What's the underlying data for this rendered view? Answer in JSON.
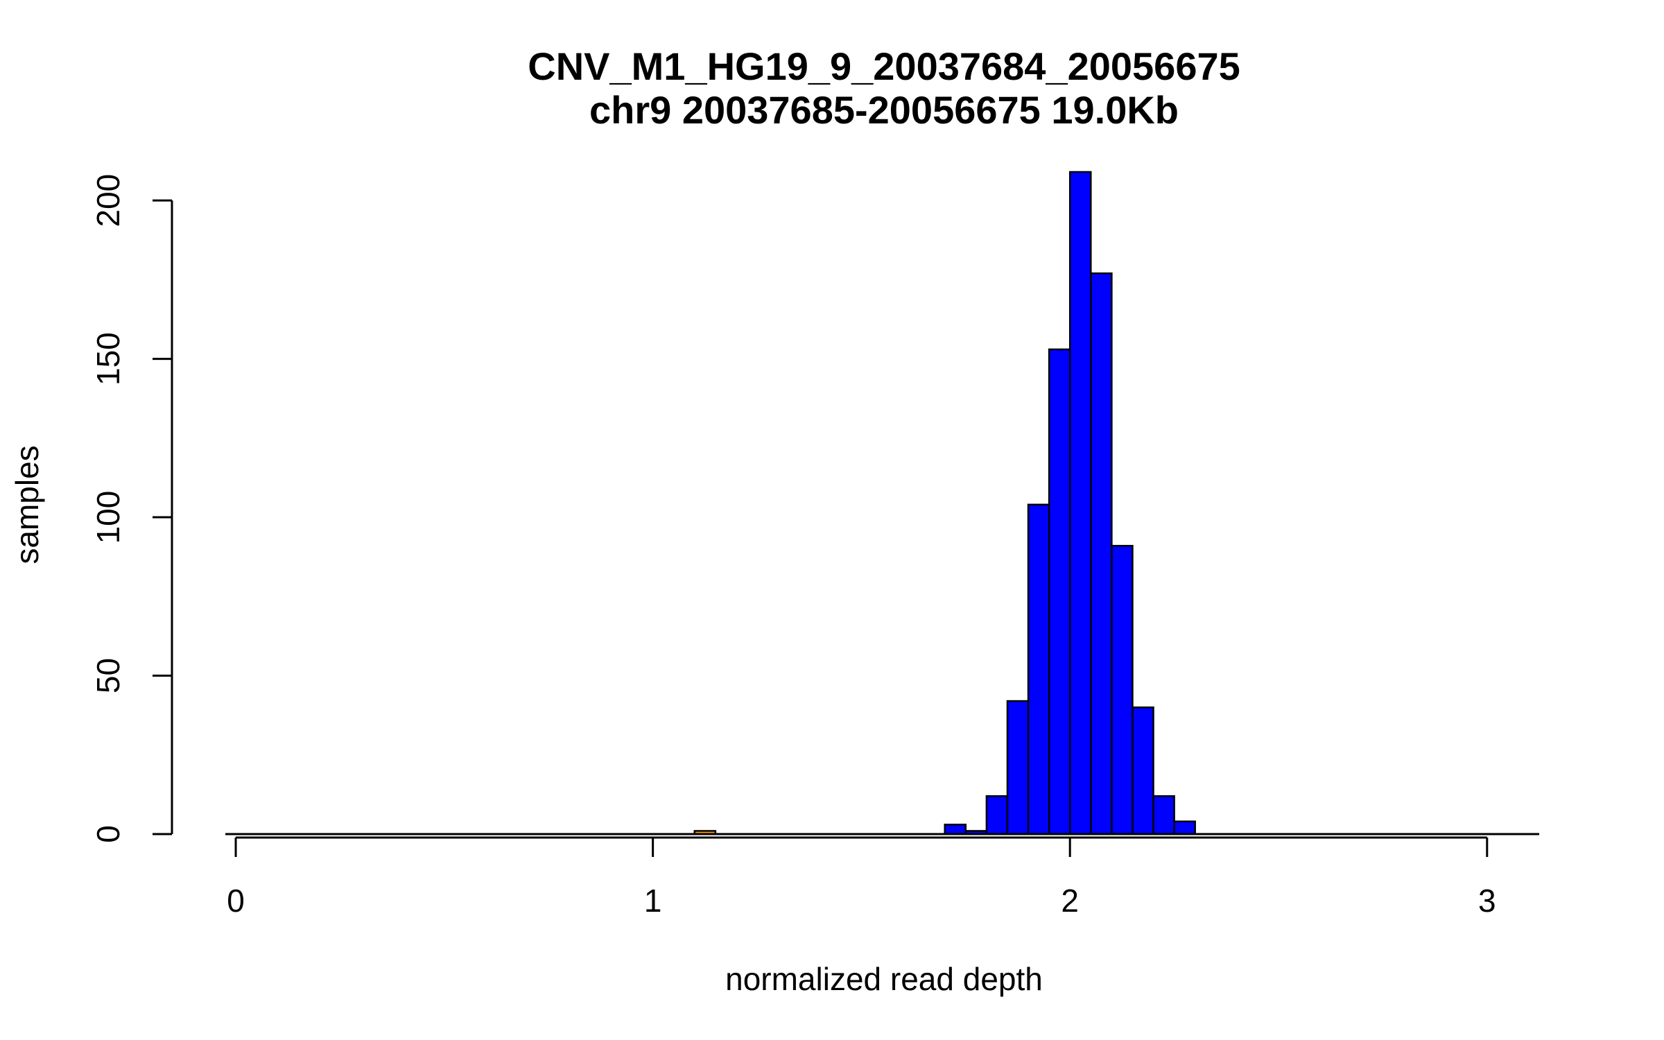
{
  "chart_data": {
    "type": "bar",
    "title": "CNV_M1_HG19_9_20037684_20056675",
    "subtitle": "chr9 20037685-20056675 19.0Kb",
    "xlabel": "normalized read depth",
    "ylabel": "samples",
    "xlim": [
      -0.025,
      3.125
    ],
    "ylim": [
      0,
      209
    ],
    "x_ticks": [
      "0",
      "1",
      "2",
      "3"
    ],
    "y_ticks": [
      "0",
      "50",
      "100",
      "150",
      "200"
    ],
    "bin_width": 0.05,
    "colors": {
      "main": "#0000ff",
      "highlight": "#ff9900",
      "edge": "#000000"
    },
    "bins": [
      {
        "x0": 1.1,
        "x1": 1.15,
        "value": 1,
        "color": "#ff9900"
      },
      {
        "x0": 1.7,
        "x1": 1.75,
        "value": 3,
        "color": "#0000ff"
      },
      {
        "x0": 1.75,
        "x1": 1.8,
        "value": 1,
        "color": "#0000ff"
      },
      {
        "x0": 1.8,
        "x1": 1.85,
        "value": 12,
        "color": "#0000ff"
      },
      {
        "x0": 1.85,
        "x1": 1.9,
        "value": 42,
        "color": "#0000ff"
      },
      {
        "x0": 1.9,
        "x1": 1.95,
        "value": 104,
        "color": "#0000ff"
      },
      {
        "x0": 1.95,
        "x1": 2.0,
        "value": 153,
        "color": "#0000ff"
      },
      {
        "x0": 2.0,
        "x1": 2.05,
        "value": 209,
        "color": "#0000ff"
      },
      {
        "x0": 2.05,
        "x1": 2.1,
        "value": 177,
        "color": "#0000ff"
      },
      {
        "x0": 2.1,
        "x1": 2.15,
        "value": 91,
        "color": "#0000ff"
      },
      {
        "x0": 2.15,
        "x1": 2.2,
        "value": 40,
        "color": "#0000ff"
      },
      {
        "x0": 2.2,
        "x1": 2.25,
        "value": 12,
        "color": "#0000ff"
      },
      {
        "x0": 2.25,
        "x1": 2.3,
        "value": 4,
        "color": "#0000ff"
      }
    ]
  }
}
